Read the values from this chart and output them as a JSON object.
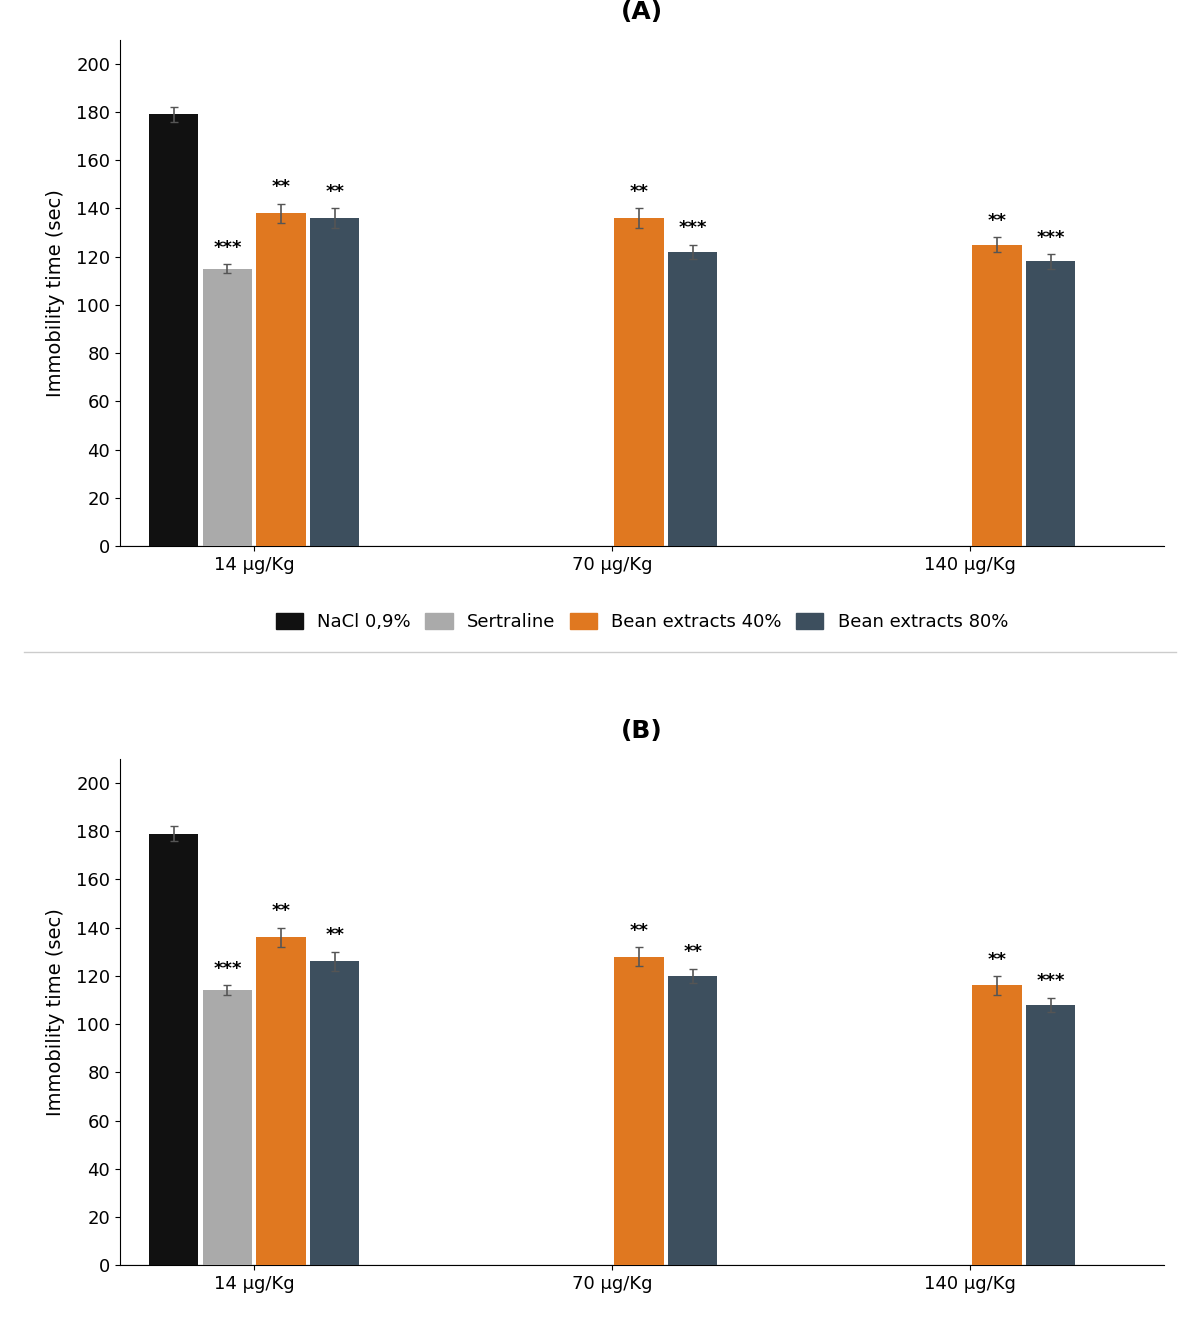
{
  "panel_A": {
    "title": "(A)",
    "groups": [
      "14 μg/Kg",
      "70 μg/Kg",
      "140 μg/Kg"
    ],
    "series": {
      "NaCl 0,9%": {
        "color": "#111111",
        "values": [
          179,
          null,
          null
        ],
        "errors": [
          3,
          null,
          null
        ],
        "sig": [
          "",
          "",
          ""
        ]
      },
      "Sertraline": {
        "color": "#aaaaaa",
        "values": [
          115,
          null,
          null
        ],
        "errors": [
          2,
          null,
          null
        ],
        "sig": [
          "***",
          "",
          ""
        ]
      },
      "Bean extracts 40%": {
        "color": "#e07820",
        "values": [
          138,
          136,
          125
        ],
        "errors": [
          4,
          4,
          3
        ],
        "sig": [
          "**",
          "**",
          "**"
        ]
      },
      "Bean extracts 80%": {
        "color": "#3d4f5e",
        "values": [
          136,
          122,
          118
        ],
        "errors": [
          4,
          3,
          3
        ],
        "sig": [
          "**",
          "***",
          "***"
        ]
      }
    },
    "ylabel": "Immobility time (sec)",
    "ylim": [
      0,
      210
    ],
    "yticks": [
      0,
      20,
      40,
      60,
      80,
      100,
      120,
      140,
      160,
      180,
      200
    ],
    "legend_label": "NaCl 0,9%"
  },
  "panel_B": {
    "title": "(B)",
    "groups": [
      "14 μg/Kg",
      "70 μg/Kg",
      "140 μg/Kg"
    ],
    "series": {
      "NaCl0,9%": {
        "color": "#111111",
        "values": [
          179,
          null,
          null
        ],
        "errors": [
          3,
          null,
          null
        ],
        "sig": [
          "",
          "",
          ""
        ]
      },
      "Sertraline": {
        "color": "#aaaaaa",
        "values": [
          114,
          null,
          null
        ],
        "errors": [
          2,
          null,
          null
        ],
        "sig": [
          "***",
          "",
          ""
        ]
      },
      "Bean extracts 40%": {
        "color": "#e07820",
        "values": [
          136,
          128,
          116
        ],
        "errors": [
          4,
          4,
          4
        ],
        "sig": [
          "**",
          "**",
          "**"
        ]
      },
      "Bean extracts 80%": {
        "color": "#3d4f5e",
        "values": [
          126,
          120,
          108
        ],
        "errors": [
          4,
          3,
          3
        ],
        "sig": [
          "**",
          "**",
          "***"
        ]
      }
    },
    "ylabel": "Immobility time (sec)",
    "ylim": [
      0,
      210
    ],
    "yticks": [
      0,
      20,
      40,
      60,
      80,
      100,
      120,
      140,
      160,
      180,
      200
    ],
    "legend_label": "NaCl0,9%"
  },
  "bar_width": 0.18,
  "group_positions": [
    1.0,
    2.2,
    3.4
  ],
  "offsets": [
    -1.5,
    -0.5,
    0.5,
    1.5
  ],
  "sig_fontsize": 13,
  "axis_fontsize": 14,
  "title_fontsize": 18,
  "tick_fontsize": 13,
  "legend_fontsize": 13,
  "background_color": "#ffffff",
  "fig_width": 12.0,
  "fig_height": 13.18
}
